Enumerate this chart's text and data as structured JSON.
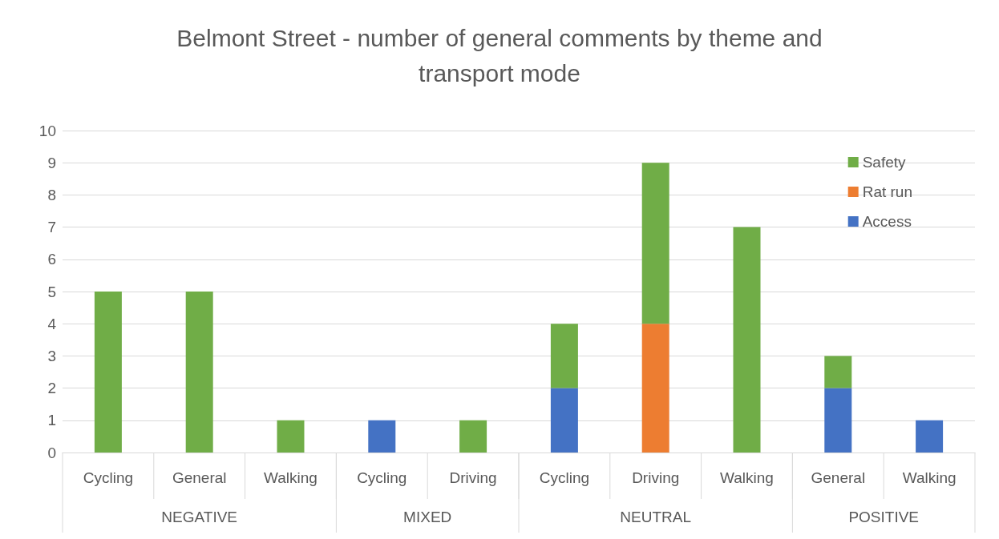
{
  "chart_data": {
    "type": "bar",
    "title": "Belmont Street - number of general comments by theme and\ntransport mode",
    "categories": [
      "Cycling",
      "General",
      "Walking",
      "Cycling",
      "Driving",
      "Cycling",
      "Driving",
      "Walking",
      "General",
      "Walking"
    ],
    "stacked": true,
    "series": [
      {
        "name": "Access",
        "color": "#4472c4",
        "values": [
          0,
          0,
          0,
          1,
          0,
          2,
          0,
          0,
          2,
          1
        ]
      },
      {
        "name": "Rat run",
        "color": "#ed7d31",
        "values": [
          0,
          0,
          0,
          0,
          0,
          0,
          4,
          0,
          0,
          0
        ]
      },
      {
        "name": "Safety",
        "color": "#70ad47",
        "values": [
          5,
          5,
          1,
          0,
          1,
          2,
          5,
          7,
          1,
          0
        ]
      }
    ],
    "annotations": [
      "NEGATIVE",
      "MIXED",
      "NEUTRAL",
      "POSITIVE"
    ],
    "ylim": [
      0,
      10
    ],
    "yticks": [
      0,
      1,
      2,
      3,
      4,
      5,
      6,
      7,
      8,
      9,
      10
    ],
    "grid": "y",
    "legend": "top right"
  }
}
